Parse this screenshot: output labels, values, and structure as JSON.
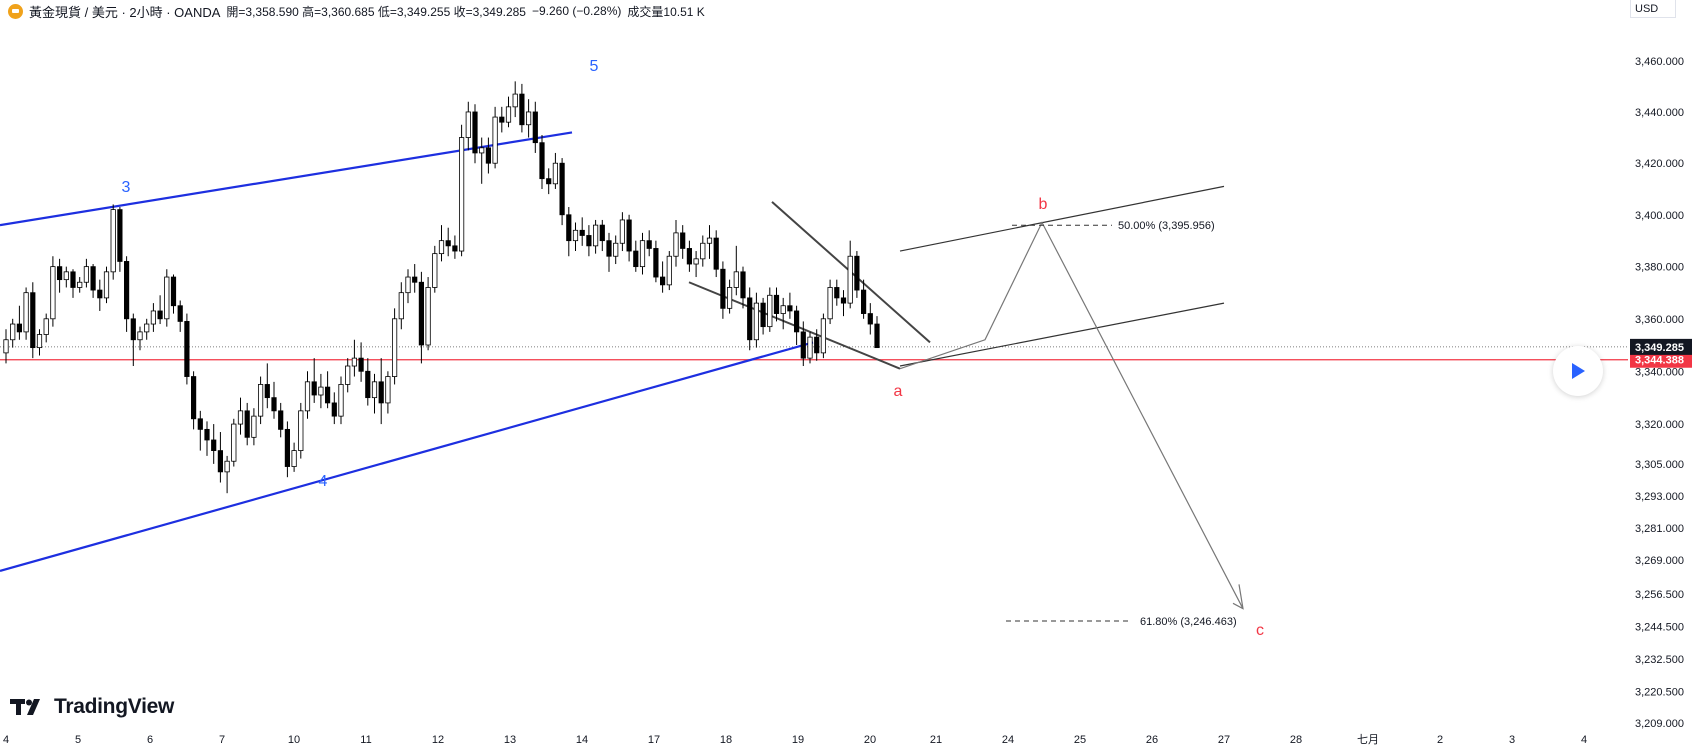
{
  "header": {
    "symbol": "黃金現貨 / 美元 · 2小時 · OANDA",
    "ohlc": "開=3,358.590 高=3,360.685 低=3,349.255 收=3,349.285",
    "change": "−9.260 (−0.28%)",
    "volume": "成交量10.51 K",
    "currency": "USD",
    "symbol_icon": "gold-coin-icon"
  },
  "logo": {
    "text": "TradingView",
    "icon": "tradingview-logo-icon"
  },
  "colors": {
    "wave_blue": "#1d2fe0",
    "red": "#f23645",
    "up": "#ffffff",
    "down": "#000000"
  },
  "chart_data": {
    "type": "candlestick",
    "y_axis": {
      "ticks": [
        3460.0,
        3440.0,
        3420.0,
        3400.0,
        3380.0,
        3360.0,
        3340.0,
        3320.0,
        3305.0,
        3293.0,
        3281.0,
        3269.0,
        3256.5,
        3244.5,
        3232.5,
        3220.5,
        3209.0
      ],
      "tick_labels": [
        "3,460.000",
        "3,440.000",
        "3,420.000",
        "3,400.000",
        "3,380.000",
        "3,360.000",
        "3,340.000",
        "3,320.000",
        "3,305.000",
        "3,293.000",
        "3,281.000",
        "3,269.000",
        "3,256.500",
        "3,244.500",
        "3,232.500",
        "3,220.500",
        "3,209.000"
      ],
      "scale": "log",
      "range": [
        3205,
        3470
      ]
    },
    "x_axis": {
      "tick_labels": [
        "4",
        "5",
        "6",
        "7",
        "10",
        "11",
        "12",
        "13",
        "14",
        "17",
        "18",
        "19",
        "20",
        "21",
        "24",
        "25",
        "26",
        "27",
        "28",
        "七月",
        "2",
        "3",
        "4"
      ]
    },
    "price_labels": [
      {
        "value": 3349.285,
        "label": "3,349.285",
        "kind": "last"
      },
      {
        "value": 3344.388,
        "label": "3,344.388",
        "kind": "line"
      }
    ],
    "fib_levels": [
      {
        "label": "50.00% (3,395.956)",
        "value": 3395.956
      },
      {
        "label": "61.80% (3,246.463)",
        "value": 3246.463
      }
    ],
    "wave_labels": [
      {
        "text": "3",
        "color": "blue"
      },
      {
        "text": "4",
        "color": "blue"
      },
      {
        "text": "5",
        "color": "blue"
      },
      {
        "text": "a",
        "color": "red"
      },
      {
        "text": "b",
        "color": "red"
      },
      {
        "text": "c",
        "color": "red"
      }
    ],
    "candles": [
      [
        3347,
        3356,
        3343,
        3352
      ],
      [
        3352,
        3360,
        3349,
        3358
      ],
      [
        3358,
        3365,
        3352,
        3355
      ],
      [
        3355,
        3372,
        3352,
        3370
      ],
      [
        3370,
        3374,
        3345,
        3349
      ],
      [
        3349,
        3356,
        3346,
        3354
      ],
      [
        3354,
        3362,
        3351,
        3360
      ],
      [
        3360,
        3384,
        3357,
        3380
      ],
      [
        3380,
        3383,
        3370,
        3375
      ],
      [
        3375,
        3380,
        3372,
        3378
      ],
      [
        3378,
        3379,
        3368,
        3372
      ],
      [
        3372,
        3376,
        3370,
        3374
      ],
      [
        3374,
        3383,
        3372,
        3380
      ],
      [
        3380,
        3381,
        3368,
        3371
      ],
      [
        3371,
        3375,
        3363,
        3368
      ],
      [
        3368,
        3380,
        3366,
        3378
      ],
      [
        3378,
        3404,
        3375,
        3402
      ],
      [
        3402,
        3403,
        3378,
        3382
      ],
      [
        3382,
        3384,
        3355,
        3360
      ],
      [
        3360,
        3362,
        3342,
        3352
      ],
      [
        3352,
        3357,
        3348,
        3355
      ],
      [
        3355,
        3360,
        3352,
        3358
      ],
      [
        3358,
        3366,
        3355,
        3363
      ],
      [
        3363,
        3369,
        3358,
        3360
      ],
      [
        3360,
        3379,
        3357,
        3376
      ],
      [
        3376,
        3377,
        3362,
        3365
      ],
      [
        3365,
        3367,
        3355,
        3359
      ],
      [
        3359,
        3362,
        3335,
        3338
      ],
      [
        3338,
        3340,
        3318,
        3322
      ],
      [
        3322,
        3325,
        3310,
        3318
      ],
      [
        3318,
        3321,
        3308,
        3314
      ],
      [
        3314,
        3320,
        3305,
        3310
      ],
      [
        3310,
        3317,
        3298,
        3302
      ],
      [
        3302,
        3308,
        3294,
        3306
      ],
      [
        3306,
        3322,
        3304,
        3320
      ],
      [
        3320,
        3330,
        3316,
        3325
      ],
      [
        3325,
        3328,
        3312,
        3315
      ],
      [
        3315,
        3326,
        3312,
        3323
      ],
      [
        3323,
        3338,
        3320,
        3335
      ],
      [
        3335,
        3343,
        3326,
        3330
      ],
      [
        3330,
        3336,
        3322,
        3325
      ],
      [
        3325,
        3328,
        3315,
        3318
      ],
      [
        3318,
        3321,
        3300,
        3304
      ],
      [
        3304,
        3313,
        3302,
        3310
      ],
      [
        3310,
        3328,
        3307,
        3325
      ],
      [
        3325,
        3340,
        3322,
        3336
      ],
      [
        3336,
        3345,
        3328,
        3331
      ],
      [
        3331,
        3339,
        3326,
        3334
      ],
      [
        3334,
        3340,
        3326,
        3328
      ],
      [
        3328,
        3332,
        3320,
        3323
      ],
      [
        3323,
        3338,
        3320,
        3335
      ],
      [
        3335,
        3345,
        3332,
        3342
      ],
      [
        3342,
        3352,
        3338,
        3345
      ],
      [
        3345,
        3351,
        3336,
        3340
      ],
      [
        3340,
        3345,
        3327,
        3330
      ],
      [
        3330,
        3339,
        3324,
        3336
      ],
      [
        3336,
        3345,
        3320,
        3328
      ],
      [
        3328,
        3340,
        3324,
        3338
      ],
      [
        3338,
        3364,
        3335,
        3360
      ],
      [
        3360,
        3374,
        3356,
        3370
      ],
      [
        3370,
        3379,
        3366,
        3376
      ],
      [
        3376,
        3381,
        3370,
        3374
      ],
      [
        3374,
        3378,
        3343,
        3350
      ],
      [
        3350,
        3376,
        3348,
        3372
      ],
      [
        3372,
        3388,
        3370,
        3385
      ],
      [
        3385,
        3396,
        3382,
        3390
      ],
      [
        3390,
        3395,
        3384,
        3388
      ],
      [
        3388,
        3392,
        3383,
        3386
      ],
      [
        3386,
        3435,
        3384,
        3430
      ],
      [
        3430,
        3444,
        3425,
        3440
      ],
      [
        3440,
        3443,
        3420,
        3424
      ],
      [
        3424,
        3430,
        3412,
        3426
      ],
      [
        3426,
        3430,
        3416,
        3420
      ],
      [
        3420,
        3442,
        3418,
        3438
      ],
      [
        3438,
        3442,
        3432,
        3436
      ],
      [
        3436,
        3446,
        3434,
        3442
      ],
      [
        3442,
        3452,
        3438,
        3447
      ],
      [
        3447,
        3451,
        3432,
        3435
      ],
      [
        3435,
        3445,
        3430,
        3440
      ],
      [
        3440,
        3444,
        3424,
        3428
      ],
      [
        3428,
        3431,
        3410,
        3414
      ],
      [
        3414,
        3418,
        3408,
        3412
      ],
      [
        3412,
        3424,
        3410,
        3420
      ],
      [
        3420,
        3422,
        3396,
        3400
      ],
      [
        3400,
        3403,
        3384,
        3390
      ],
      [
        3390,
        3397,
        3386,
        3394
      ],
      [
        3394,
        3399,
        3388,
        3392
      ],
      [
        3392,
        3396,
        3384,
        3388
      ],
      [
        3388,
        3398,
        3385,
        3396
      ],
      [
        3396,
        3398,
        3386,
        3390
      ],
      [
        3390,
        3393,
        3378,
        3384
      ],
      [
        3384,
        3392,
        3381,
        3389
      ],
      [
        3389,
        3401,
        3386,
        3398
      ],
      [
        3398,
        3400,
        3382,
        3386
      ],
      [
        3386,
        3390,
        3378,
        3380
      ],
      [
        3380,
        3393,
        3377,
        3390
      ],
      [
        3390,
        3394,
        3384,
        3387
      ],
      [
        3387,
        3390,
        3374,
        3376
      ],
      [
        3376,
        3382,
        3370,
        3373
      ],
      [
        3373,
        3386,
        3371,
        3384
      ],
      [
        3384,
        3398,
        3380,
        3393
      ],
      [
        3393,
        3396,
        3383,
        3387
      ],
      [
        3387,
        3390,
        3378,
        3381
      ],
      [
        3381,
        3386,
        3376,
        3383
      ],
      [
        3383,
        3392,
        3380,
        3389
      ],
      [
        3389,
        3396,
        3383,
        3391
      ],
      [
        3391,
        3394,
        3376,
        3379
      ],
      [
        3379,
        3382,
        3360,
        3364
      ],
      [
        3364,
        3375,
        3362,
        3372
      ],
      [
        3372,
        3388,
        3369,
        3378
      ],
      [
        3378,
        3380,
        3364,
        3368
      ],
      [
        3368,
        3372,
        3348,
        3352
      ],
      [
        3352,
        3370,
        3349,
        3366
      ],
      [
        3366,
        3368,
        3354,
        3357
      ],
      [
        3357,
        3372,
        3355,
        3369
      ],
      [
        3369,
        3372,
        3359,
        3362
      ],
      [
        3362,
        3368,
        3356,
        3365
      ],
      [
        3365,
        3370,
        3360,
        3363
      ],
      [
        3363,
        3365,
        3350,
        3355
      ],
      [
        3355,
        3359,
        3342,
        3345
      ],
      [
        3345,
        3355,
        3343,
        3353
      ],
      [
        3353,
        3356,
        3344,
        3347
      ],
      [
        3347,
        3362,
        3345,
        3360
      ],
      [
        3360,
        3375,
        3358,
        3372
      ],
      [
        3372,
        3375,
        3365,
        3368
      ],
      [
        3368,
        3371,
        3361,
        3366
      ],
      [
        3366,
        3390,
        3364,
        3384
      ],
      [
        3384,
        3386,
        3368,
        3371
      ],
      [
        3371,
        3375,
        3360,
        3362
      ],
      [
        3362,
        3366,
        3354,
        3358
      ],
      [
        3358,
        3361,
        3349,
        3349
      ]
    ],
    "trendlines": "blue wave channel lines, black wedge lines, projected zigzag a-b-c"
  }
}
